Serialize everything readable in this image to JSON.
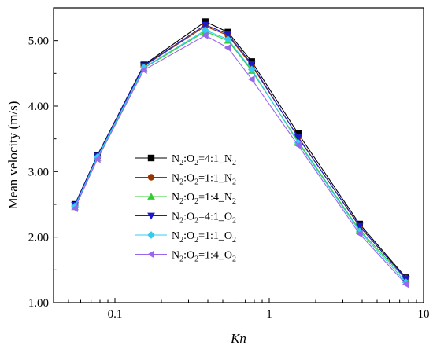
{
  "chart_data": {
    "type": "line",
    "xlabel": "Kn",
    "ylabel": "Mean velocity (m/s)",
    "xscale": "log",
    "xlim": [
      0.04,
      10
    ],
    "ylim": [
      1.0,
      5.5
    ],
    "x_tick_labels": [
      {
        "value": 0.1,
        "label": "0.1"
      },
      {
        "value": 1,
        "label": "1"
      },
      {
        "value": 10,
        "label": "10"
      }
    ],
    "y_tick_labels": [
      {
        "value": 1.0,
        "label": "1.00"
      },
      {
        "value": 2.0,
        "label": "2.00"
      },
      {
        "value": 3.0,
        "label": "3.00"
      },
      {
        "value": 4.0,
        "label": "4.00"
      },
      {
        "value": 5.0,
        "label": "5.00"
      }
    ],
    "legend_position": "center-left",
    "x": [
      0.055,
      0.077,
      0.154,
      0.385,
      0.54,
      0.77,
      1.54,
      3.85,
      7.7
    ],
    "series": [
      {
        "name": "N2:O2=4:1_N2",
        "name_parts": [
          [
            "N",
            ""
          ],
          [
            "2",
            "sub"
          ],
          [
            ":O",
            ""
          ],
          [
            "2",
            "sub"
          ],
          [
            "=4:1_N",
            ""
          ],
          [
            "2",
            "sub"
          ]
        ],
        "color": "#000000",
        "marker": "square",
        "values": [
          2.5,
          3.25,
          4.63,
          5.29,
          5.13,
          4.68,
          3.58,
          2.2,
          1.38
        ]
      },
      {
        "name": "N2:O2=1:1_N2",
        "name_parts": [
          [
            "N",
            ""
          ],
          [
            "2",
            "sub"
          ],
          [
            ":O",
            ""
          ],
          [
            "2",
            "sub"
          ],
          [
            "=1:1_N",
            ""
          ],
          [
            "2",
            "sub"
          ]
        ],
        "color": "#993300",
        "marker": "circle",
        "values": [
          2.48,
          3.23,
          4.61,
          5.22,
          5.08,
          4.62,
          3.53,
          2.16,
          1.37
        ]
      },
      {
        "name": "N2:O2=1:4_N2",
        "name_parts": [
          [
            "N",
            ""
          ],
          [
            "2",
            "sub"
          ],
          [
            ":O",
            ""
          ],
          [
            "2",
            "sub"
          ],
          [
            "=1:4_N",
            ""
          ],
          [
            "2",
            "sub"
          ]
        ],
        "color": "#33cc33",
        "marker": "triangle-up",
        "values": [
          2.46,
          3.21,
          4.58,
          5.14,
          5.0,
          4.54,
          3.46,
          2.11,
          1.35
        ]
      },
      {
        "name": "N2:O2=4:1_O2",
        "name_parts": [
          [
            "N",
            ""
          ],
          [
            "2",
            "sub"
          ],
          [
            ":O",
            ""
          ],
          [
            "2",
            "sub"
          ],
          [
            "=4:1_O",
            ""
          ],
          [
            "2",
            "sub"
          ]
        ],
        "color": "#1a1acc",
        "marker": "triangle-down",
        "values": [
          2.49,
          3.24,
          4.62,
          5.24,
          5.1,
          4.64,
          3.52,
          2.17,
          1.36
        ]
      },
      {
        "name": "N2:O2=1:1_O2",
        "name_parts": [
          [
            "N",
            ""
          ],
          [
            "2",
            "sub"
          ],
          [
            ":O",
            ""
          ],
          [
            "2",
            "sub"
          ],
          [
            "=1:1_O",
            ""
          ],
          [
            "2",
            "sub"
          ]
        ],
        "color": "#33ccee",
        "marker": "diamond",
        "values": [
          2.47,
          3.22,
          4.59,
          5.16,
          5.02,
          4.56,
          3.44,
          2.09,
          1.31
        ]
      },
      {
        "name": "N2:O2=1:4_O2",
        "name_parts": [
          [
            "N",
            ""
          ],
          [
            "2",
            "sub"
          ],
          [
            ":O",
            ""
          ],
          [
            "2",
            "sub"
          ],
          [
            "=1:4_O",
            ""
          ],
          [
            "2",
            "sub"
          ]
        ],
        "color": "#9966ee",
        "marker": "triangle-left",
        "values": [
          2.44,
          3.19,
          4.55,
          5.08,
          4.89,
          4.41,
          3.4,
          2.05,
          1.28
        ]
      }
    ]
  }
}
